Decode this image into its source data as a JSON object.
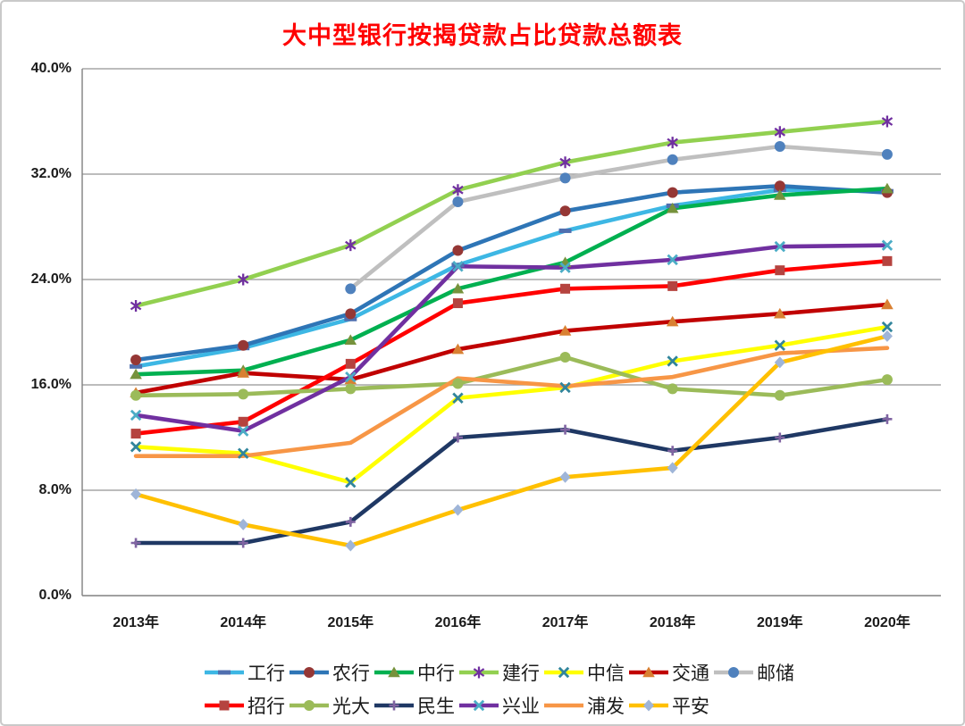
{
  "title": "大中型银行按揭贷款占比贷款总额表",
  "title_color": "#ff0000",
  "chart_data": {
    "type": "line",
    "categories": [
      "2013年",
      "2014年",
      "2015年",
      "2016年",
      "2017年",
      "2018年",
      "2019年",
      "2020年"
    ],
    "y_ticks": [
      {
        "label": "0.0%",
        "value": 0
      },
      {
        "label": "8.0%",
        "value": 8
      },
      {
        "label": "16.0%",
        "value": 16
      },
      {
        "label": "24.0%",
        "value": 24
      },
      {
        "label": "32.0%",
        "value": 32
      },
      {
        "label": "40.0%",
        "value": 40
      }
    ],
    "ylim": [
      0,
      40
    ],
    "grid": true,
    "legend_position": "bottom",
    "axis_color": "#808080",
    "grid_color": "#a6a6a6",
    "series": [
      {
        "id": "icbc",
        "name": "工行",
        "color": "#3db7e4",
        "marker": "dash",
        "marker_color": "#4f6faf",
        "values": [
          17.4,
          18.8,
          21.0,
          25.1,
          27.7,
          29.6,
          30.8,
          30.7
        ]
      },
      {
        "id": "abc",
        "name": "农行",
        "color": "#2e75b6",
        "marker": "circle",
        "marker_color": "#953735",
        "values": [
          17.9,
          19.0,
          21.4,
          26.2,
          29.2,
          30.6,
          31.1,
          30.6
        ]
      },
      {
        "id": "boc",
        "name": "中行",
        "color": "#00b050",
        "marker": "triangle",
        "marker_color": "#76923c",
        "values": [
          16.8,
          17.1,
          19.4,
          23.3,
          25.3,
          29.4,
          30.4,
          30.9
        ]
      },
      {
        "id": "ccb",
        "name": "建行",
        "color": "#92d050",
        "marker": "asterisk",
        "marker_color": "#7030a0",
        "values": [
          22.0,
          24.0,
          26.6,
          30.8,
          32.9,
          34.4,
          35.2,
          36.0
        ]
      },
      {
        "id": "citic",
        "name": "中信",
        "color": "#ffff00",
        "marker": "x",
        "marker_color": "#31859c",
        "values": [
          11.3,
          10.8,
          8.6,
          15.0,
          15.8,
          17.8,
          19.0,
          20.4
        ]
      },
      {
        "id": "bocom",
        "name": "交通",
        "color": "#c00000",
        "marker": "triangle",
        "marker_color": "#d98032",
        "values": [
          15.4,
          16.9,
          16.4,
          18.7,
          20.1,
          20.8,
          21.4,
          22.1
        ]
      },
      {
        "id": "psbc",
        "name": "邮储",
        "color": "#bfbfbf",
        "marker": "circle",
        "marker_color": "#4f81bd",
        "values": [
          null,
          null,
          23.3,
          29.9,
          31.7,
          33.1,
          34.1,
          33.5
        ]
      },
      {
        "id": "cmb",
        "name": "招行",
        "color": "#ff0000",
        "marker": "square",
        "marker_color": "#b5433f",
        "values": [
          12.3,
          13.2,
          17.6,
          22.2,
          23.3,
          23.5,
          24.7,
          25.4
        ]
      },
      {
        "id": "ceb",
        "name": "光大",
        "color": "#9bbb59",
        "marker": "circle",
        "marker_color": "#9bbb59",
        "values": [
          15.2,
          15.3,
          15.7,
          16.1,
          18.1,
          15.7,
          15.2,
          16.4
        ]
      },
      {
        "id": "cmbc",
        "name": "民生",
        "color": "#1f3864",
        "marker": "plus",
        "marker_color": "#8064a2",
        "values": [
          4.0,
          4.0,
          5.6,
          12.0,
          12.6,
          11.0,
          12.0,
          13.4
        ]
      },
      {
        "id": "cib",
        "name": "兴业",
        "color": "#7030a0",
        "marker": "x",
        "marker_color": "#4bacc6",
        "values": [
          13.7,
          12.5,
          16.6,
          25.0,
          24.9,
          25.5,
          26.5,
          26.6
        ]
      },
      {
        "id": "spdb",
        "name": "浦发",
        "color": "#f79646",
        "marker": "none",
        "marker_color": "#f79646",
        "values": [
          10.6,
          10.6,
          11.6,
          16.5,
          15.9,
          16.6,
          18.4,
          18.8
        ]
      },
      {
        "id": "pab",
        "name": "平安",
        "color": "#ffc000",
        "marker": "diamond",
        "marker_color": "#9fb5d8",
        "values": [
          7.7,
          5.4,
          3.8,
          6.5,
          9.0,
          9.7,
          17.7,
          19.7
        ]
      }
    ]
  }
}
